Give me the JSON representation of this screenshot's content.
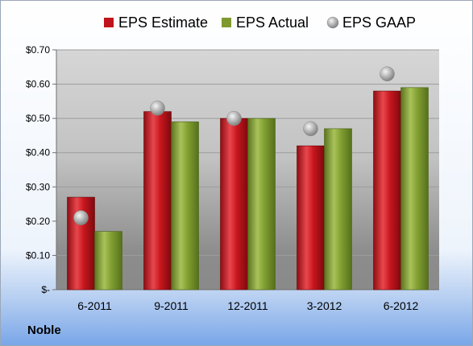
{
  "company": "Noble",
  "chart_data": {
    "type": "bar",
    "categories": [
      "6-2011",
      "9-2011",
      "12-2011",
      "3-2012",
      "6-2012"
    ],
    "series": [
      {
        "name": "EPS Estimate",
        "values": [
          0.27,
          0.52,
          0.5,
          0.42,
          0.58
        ],
        "color": "#c0141c"
      },
      {
        "name": "EPS Actual",
        "values": [
          0.17,
          0.49,
          0.5,
          0.47,
          0.59
        ],
        "color": "#7e9a2e"
      }
    ],
    "markers": {
      "name": "EPS GAAP",
      "type": "scatter",
      "values": [
        0.21,
        0.53,
        0.5,
        0.47,
        0.63
      ],
      "color": "#a6a6a6"
    },
    "y_ticks": [
      "$-",
      "$0.10",
      "$0.20",
      "$0.30",
      "$0.40",
      "$0.50",
      "$0.60",
      "$0.70"
    ],
    "ylim": [
      0,
      0.7
    ],
    "grid": true,
    "legend_position": "top",
    "title": "",
    "xlabel": "",
    "ylabel": ""
  }
}
